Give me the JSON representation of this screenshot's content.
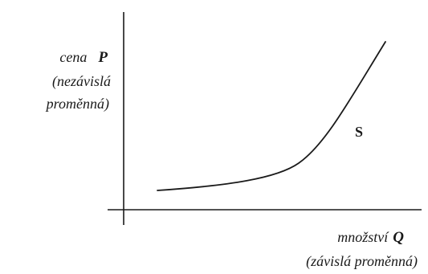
{
  "y_axis": {
    "line1_text": "cena",
    "line1_symbol": "P",
    "line2": "(nezávislá",
    "line3": "proměnná)"
  },
  "x_axis": {
    "line1_text": "množství",
    "line1_symbol": "Q",
    "line2": "(závislá proměnná)"
  },
  "curve": {
    "label": "S",
    "shape": "convex-increasing"
  },
  "colors": {
    "ink": "#1a1a1a",
    "background": "#ffffff"
  }
}
